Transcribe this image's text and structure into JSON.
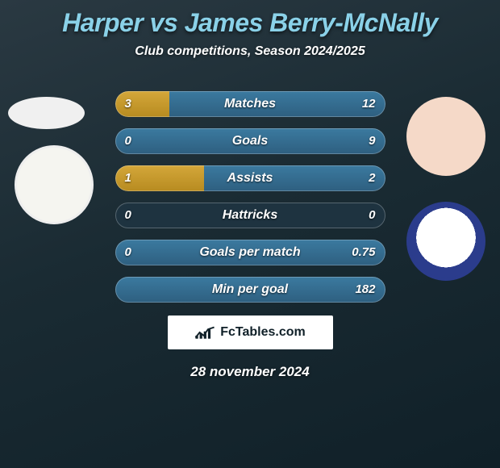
{
  "title_color": "#8ad1e8",
  "title": "Harper vs James Berry-McNally",
  "subtitle": "Club competitions, Season 2024/2025",
  "branding": "FcTables.com",
  "date": "28 november 2024",
  "bar": {
    "left_gradient_from": "#d4a73a",
    "left_gradient_to": "#b78b20",
    "right_gradient_from": "#3b7aa0",
    "right_gradient_to": "#2e5f80",
    "track_color": "#1e3340"
  },
  "avatars": {
    "left_player_bg": "#f0f0f0",
    "left_crest_bg": "#f5f5f0",
    "right_player_bg": "#f5d9c8",
    "right_crest_border": "#2b3c8c"
  },
  "rows": [
    {
      "label": "Matches",
      "left": "3",
      "right": "12",
      "lw": 20,
      "rw": 80
    },
    {
      "label": "Goals",
      "left": "0",
      "right": "9",
      "lw": 0,
      "rw": 100
    },
    {
      "label": "Assists",
      "left": "1",
      "right": "2",
      "lw": 33,
      "rw": 67
    },
    {
      "label": "Hattricks",
      "left": "0",
      "right": "0",
      "lw": 0,
      "rw": 0
    },
    {
      "label": "Goals per match",
      "left": "0",
      "right": "0.75",
      "lw": 0,
      "rw": 100
    },
    {
      "label": "Min per goal",
      "left": "",
      "right": "182",
      "lw": 0,
      "rw": 100
    }
  ]
}
